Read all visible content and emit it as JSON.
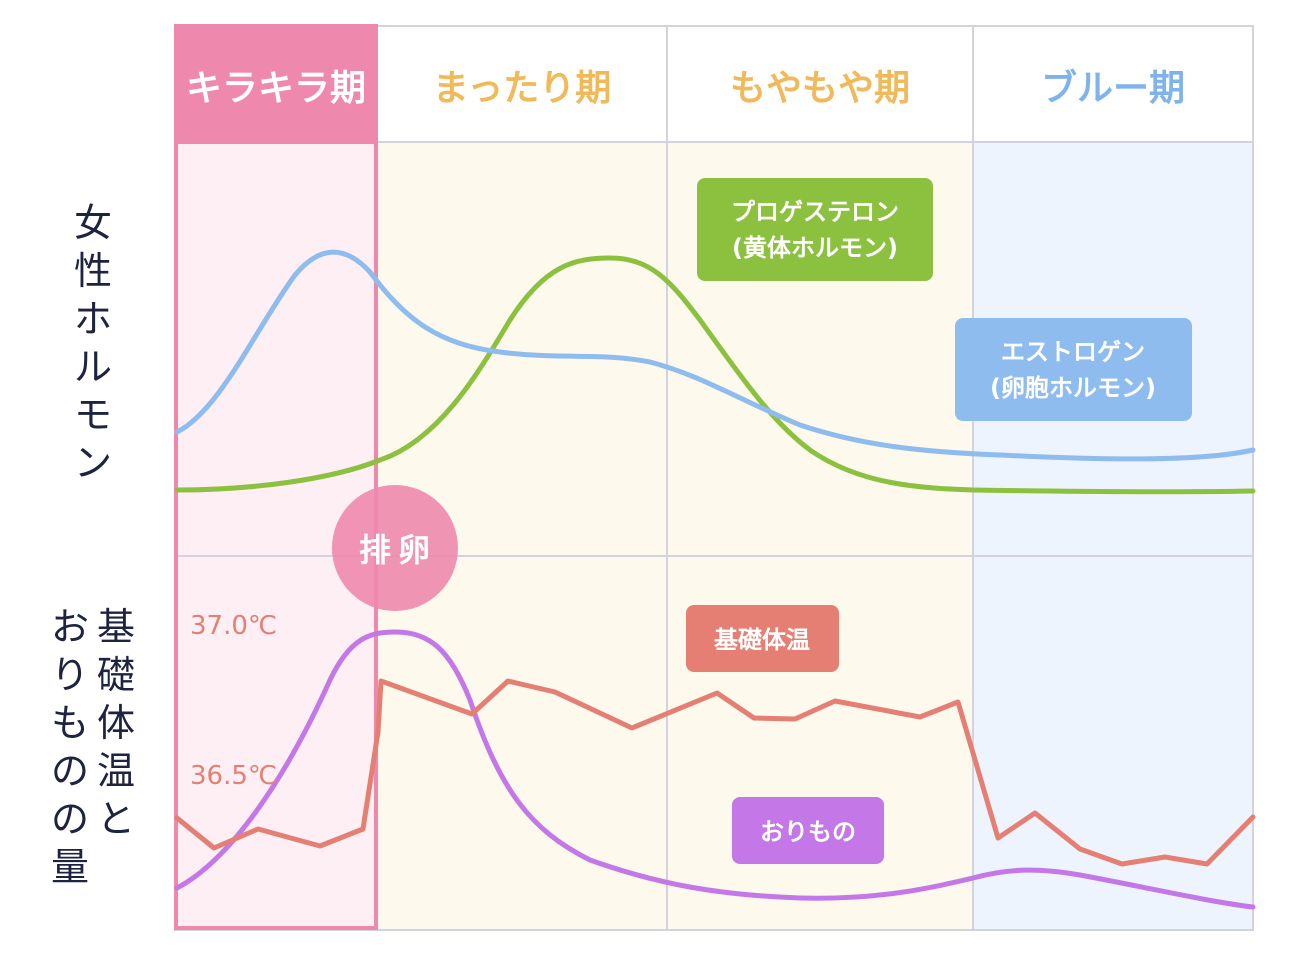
{
  "phases": [
    {
      "label": "キラキラ期",
      "color": "#ee88ad"
    },
    {
      "label": "まったり期",
      "color": "#f0b95a"
    },
    {
      "label": "もやもや期",
      "color": "#f0b95a"
    },
    {
      "label": "ブルー期",
      "color": "#7fb3ea"
    }
  ],
  "rows": {
    "hormone_label": [
      "女",
      "性",
      "ホ",
      "ル",
      "モ",
      "ン"
    ],
    "temp_label_col1": [
      "基",
      "礎",
      "体",
      "温",
      "と"
    ],
    "temp_label_col2": [
      "お",
      "り",
      "も",
      "の",
      "の",
      "量"
    ]
  },
  "ovulation": {
    "line1": "排",
    "line2": "卵",
    "color": "#ee88ad"
  },
  "temperatures": {
    "high": "37.0℃",
    "low": "36.5℃",
    "color": "#e57f74"
  },
  "series_labels": {
    "progesterone": {
      "line1": "プロゲステロン",
      "line2": "(黄体ホルモン)",
      "color": "#8cc13f"
    },
    "estrogen": {
      "line1": "エストロゲン",
      "line2": "(卵胞ホルモン)",
      "color": "#8fbcee"
    },
    "bbt": {
      "line1": "基礎体温",
      "color": "#e57f74"
    },
    "discharge": {
      "line1": "おりもの",
      "color": "#c477e6"
    }
  },
  "colors": {
    "grid": "#d3d3e0",
    "phase_bg_yellow": "#fdf9ec",
    "phase_bg_blue": "#eef4fd",
    "phase_bg_pink": "#fdeff4",
    "label_text": "#1e2340"
  }
}
